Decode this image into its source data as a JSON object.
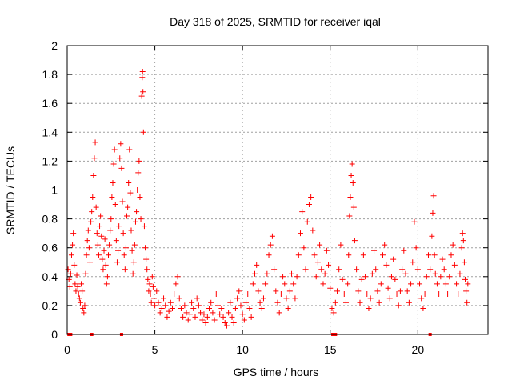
{
  "chart_data": {
    "type": "scatter",
    "title": "Day 318 of 2025, SRMTID for receiver iqal",
    "xlabel": "GPS time / hours",
    "ylabel": "SRMTID / TECUs",
    "xlim": [
      0,
      24
    ],
    "ylim": [
      0,
      2
    ],
    "xticks": [
      0,
      5,
      10,
      15,
      20
    ],
    "xtick_labels": [
      "0",
      "5",
      "10",
      "15",
      "20"
    ],
    "yticks": [
      0,
      0.2,
      0.4,
      0.6,
      0.8,
      1,
      1.2,
      1.4,
      1.6,
      1.8,
      2
    ],
    "ytick_labels": [
      "0",
      "0.2",
      "0.4",
      "0.6",
      "0.8",
      "1",
      "1.2",
      "1.4",
      "1.6",
      "1.8",
      "2"
    ],
    "grid": true,
    "marker": "+",
    "color": "#ff0000",
    "series": [
      {
        "name": "SRMTID",
        "points": [
          [
            0.05,
            0.45
          ],
          [
            0.1,
            0.38
          ],
          [
            0.15,
            0.33
          ],
          [
            0.2,
            0.42
          ],
          [
            0.25,
            0.55
          ],
          [
            0.3,
            0.62
          ],
          [
            0.35,
            0.7
          ],
          [
            0.4,
            0.48
          ],
          [
            0.45,
            0.35
          ],
          [
            0.5,
            0.3
          ],
          [
            0.55,
            0.41
          ],
          [
            0.6,
            0.33
          ],
          [
            0.65,
            0.28
          ],
          [
            0.7,
            0.25
          ],
          [
            0.75,
            0.22
          ],
          [
            0.8,
            0.35
          ],
          [
            0.85,
            0.3
          ],
          [
            0.9,
            0.18
          ],
          [
            0.95,
            0.15
          ],
          [
            1.0,
            0.2
          ],
          [
            1.05,
            0.42
          ],
          [
            1.1,
            0.55
          ],
          [
            1.15,
            0.65
          ],
          [
            1.2,
            0.72
          ],
          [
            1.25,
            0.6
          ],
          [
            1.3,
            0.5
          ],
          [
            1.35,
            0.78
          ],
          [
            1.4,
            0.85
          ],
          [
            1.45,
            0.95
          ],
          [
            1.5,
            1.1
          ],
          [
            1.55,
            1.22
          ],
          [
            1.6,
            1.33
          ],
          [
            1.65,
            0.88
          ],
          [
            1.7,
            0.7
          ],
          [
            1.75,
            0.62
          ],
          [
            1.8,
            0.55
          ],
          [
            1.85,
            0.75
          ],
          [
            1.9,
            0.82
          ],
          [
            1.95,
            0.68
          ],
          [
            2.0,
            0.52
          ],
          [
            2.05,
            0.45
          ],
          [
            2.1,
            0.58
          ],
          [
            2.15,
            0.66
          ],
          [
            2.2,
            0.48
          ],
          [
            2.25,
            0.35
          ],
          [
            2.3,
            0.4
          ],
          [
            2.35,
            0.55
          ],
          [
            2.4,
            0.62
          ],
          [
            2.45,
            0.72
          ],
          [
            2.5,
            0.8
          ],
          [
            2.55,
            0.95
          ],
          [
            2.6,
            1.05
          ],
          [
            2.65,
            1.18
          ],
          [
            2.7,
            1.28
          ],
          [
            2.75,
            0.9
          ],
          [
            2.8,
            0.65
          ],
          [
            2.85,
            0.5
          ],
          [
            2.9,
            0.58
          ],
          [
            2.95,
            0.75
          ],
          [
            3.0,
            1.22
          ],
          [
            3.05,
            1.32
          ],
          [
            3.1,
            1.15
          ],
          [
            3.15,
            0.92
          ],
          [
            3.2,
            0.7
          ],
          [
            3.25,
            0.55
          ],
          [
            3.3,
            0.45
          ],
          [
            3.35,
            0.6
          ],
          [
            3.4,
            0.82
          ],
          [
            3.45,
            0.88
          ],
          [
            3.5,
            1.05
          ],
          [
            3.55,
            1.28
          ],
          [
            3.6,
            0.98
          ],
          [
            3.65,
            0.72
          ],
          [
            3.7,
            0.58
          ],
          [
            3.75,
            0.42
          ],
          [
            3.8,
            0.5
          ],
          [
            3.85,
            0.62
          ],
          [
            3.9,
            0.78
          ],
          [
            3.95,
            0.85
          ],
          [
            4.0,
            1.0
          ],
          [
            4.05,
            1.12
          ],
          [
            4.1,
            1.2
          ],
          [
            4.15,
            0.95
          ],
          [
            4.2,
            0.8
          ],
          [
            4.25,
            1.65
          ],
          [
            4.28,
            1.78
          ],
          [
            4.3,
            1.82
          ],
          [
            4.32,
            1.68
          ],
          [
            4.35,
            1.4
          ],
          [
            4.4,
            0.75
          ],
          [
            4.45,
            0.6
          ],
          [
            4.5,
            0.52
          ],
          [
            4.55,
            0.45
          ],
          [
            4.6,
            0.38
          ],
          [
            4.65,
            0.3
          ],
          [
            4.7,
            0.35
          ],
          [
            4.75,
            0.28
          ],
          [
            4.8,
            0.22
          ],
          [
            4.85,
            0.4
          ],
          [
            4.9,
            0.33
          ],
          [
            4.95,
            0.25
          ],
          [
            5.0,
            0.2
          ],
          [
            5.1,
            0.3
          ],
          [
            5.2,
            0.22
          ],
          [
            5.3,
            0.15
          ],
          [
            5.4,
            0.18
          ],
          [
            5.5,
            0.25
          ],
          [
            5.6,
            0.2
          ],
          [
            5.7,
            0.12
          ],
          [
            5.8,
            0.16
          ],
          [
            5.9,
            0.22
          ],
          [
            6.0,
            0.18
          ],
          [
            6.1,
            0.28
          ],
          [
            6.2,
            0.35
          ],
          [
            6.3,
            0.4
          ],
          [
            6.4,
            0.25
          ],
          [
            6.5,
            0.18
          ],
          [
            6.6,
            0.12
          ],
          [
            6.7,
            0.2
          ],
          [
            6.8,
            0.15
          ],
          [
            6.9,
            0.1
          ],
          [
            7.0,
            0.14
          ],
          [
            7.1,
            0.22
          ],
          [
            7.2,
            0.18
          ],
          [
            7.3,
            0.12
          ],
          [
            7.4,
            0.25
          ],
          [
            7.5,
            0.2
          ],
          [
            7.6,
            0.15
          ],
          [
            7.7,
            0.1
          ],
          [
            7.8,
            0.14
          ],
          [
            7.9,
            0.08
          ],
          [
            8.0,
            0.12
          ],
          [
            8.1,
            0.18
          ],
          [
            8.2,
            0.22
          ],
          [
            8.3,
            0.15
          ],
          [
            8.4,
            0.1
          ],
          [
            8.5,
            0.28
          ],
          [
            8.6,
            0.2
          ],
          [
            8.7,
            0.14
          ],
          [
            8.8,
            0.18
          ],
          [
            8.9,
            0.12
          ],
          [
            9.0,
            0.08
          ],
          [
            9.1,
            0.06
          ],
          [
            9.2,
            0.15
          ],
          [
            9.3,
            0.22
          ],
          [
            9.4,
            0.12
          ],
          [
            9.5,
            0.08
          ],
          [
            9.6,
            0.18
          ],
          [
            9.7,
            0.25
          ],
          [
            9.8,
            0.3
          ],
          [
            9.9,
            0.2
          ],
          [
            10.0,
            0.14
          ],
          [
            10.1,
            0.1
          ],
          [
            10.2,
            0.22
          ],
          [
            10.3,
            0.28
          ],
          [
            10.4,
            0.18
          ],
          [
            10.5,
            0.12
          ],
          [
            10.6,
            0.35
          ],
          [
            10.7,
            0.42
          ],
          [
            10.8,
            0.48
          ],
          [
            10.9,
            0.3
          ],
          [
            11.0,
            0.22
          ],
          [
            11.1,
            0.18
          ],
          [
            11.2,
            0.25
          ],
          [
            11.3,
            0.35
          ],
          [
            11.4,
            0.42
          ],
          [
            11.5,
            0.55
          ],
          [
            11.6,
            0.62
          ],
          [
            11.7,
            0.68
          ],
          [
            11.8,
            0.45
          ],
          [
            11.9,
            0.3
          ],
          [
            12.0,
            0.22
          ],
          [
            12.1,
            0.15
          ],
          [
            12.2,
            0.28
          ],
          [
            12.3,
            0.4
          ],
          [
            12.4,
            0.35
          ],
          [
            12.5,
            0.25
          ],
          [
            12.6,
            0.18
          ],
          [
            12.7,
            0.3
          ],
          [
            12.8,
            0.42
          ],
          [
            12.9,
            0.35
          ],
          [
            13.0,
            0.25
          ],
          [
            13.1,
            0.4
          ],
          [
            13.2,
            0.55
          ],
          [
            13.3,
            0.7
          ],
          [
            13.4,
            0.85
          ],
          [
            13.5,
            0.6
          ],
          [
            13.6,
            0.45
          ],
          [
            13.7,
            0.78
          ],
          [
            13.8,
            0.9
          ],
          [
            13.9,
            0.95
          ],
          [
            14.0,
            0.72
          ],
          [
            14.1,
            0.55
          ],
          [
            14.2,
            0.4
          ],
          [
            14.3,
            0.5
          ],
          [
            14.4,
            0.62
          ],
          [
            14.5,
            0.45
          ],
          [
            14.6,
            0.35
          ],
          [
            14.7,
            0.42
          ],
          [
            14.8,
            0.58
          ],
          [
            14.9,
            0.48
          ],
          [
            15.0,
            0.32
          ],
          [
            15.1,
            0.18
          ],
          [
            15.2,
            0.15
          ],
          [
            15.3,
            0.22
          ],
          [
            15.4,
            0.3
          ],
          [
            15.5,
            0.45
          ],
          [
            15.6,
            0.62
          ],
          [
            15.7,
            0.38
          ],
          [
            15.8,
            0.28
          ],
          [
            15.9,
            0.22
          ],
          [
            16.0,
            0.35
          ],
          [
            16.05,
            0.55
          ],
          [
            16.1,
            0.82
          ],
          [
            16.15,
            0.95
          ],
          [
            16.2,
            1.1
          ],
          [
            16.25,
            1.18
          ],
          [
            16.3,
            1.05
          ],
          [
            16.35,
            0.88
          ],
          [
            16.4,
            0.65
          ],
          [
            16.5,
            0.45
          ],
          [
            16.6,
            0.3
          ],
          [
            16.7,
            0.22
          ],
          [
            16.8,
            0.38
          ],
          [
            16.9,
            0.55
          ],
          [
            17.0,
            0.4
          ],
          [
            17.1,
            0.28
          ],
          [
            17.2,
            0.18
          ],
          [
            17.3,
            0.25
          ],
          [
            17.4,
            0.42
          ],
          [
            17.5,
            0.58
          ],
          [
            17.6,
            0.45
          ],
          [
            17.7,
            0.3
          ],
          [
            17.8,
            0.22
          ],
          [
            17.9,
            0.35
          ],
          [
            18.0,
            0.55
          ],
          [
            18.1,
            0.62
          ],
          [
            18.2,
            0.48
          ],
          [
            18.3,
            0.32
          ],
          [
            18.4,
            0.25
          ],
          [
            18.5,
            0.4
          ],
          [
            18.6,
            0.52
          ],
          [
            18.7,
            0.38
          ],
          [
            18.8,
            0.28
          ],
          [
            18.9,
            0.2
          ],
          [
            19.0,
            0.3
          ],
          [
            19.1,
            0.45
          ],
          [
            19.2,
            0.58
          ],
          [
            19.3,
            0.42
          ],
          [
            19.4,
            0.3
          ],
          [
            19.5,
            0.22
          ],
          [
            19.6,
            0.35
          ],
          [
            19.7,
            0.5
          ],
          [
            19.8,
            0.78
          ],
          [
            19.9,
            0.6
          ],
          [
            20.0,
            0.45
          ],
          [
            20.1,
            0.35
          ],
          [
            20.2,
            0.25
          ],
          [
            20.3,
            0.18
          ],
          [
            20.4,
            0.28
          ],
          [
            20.5,
            0.4
          ],
          [
            20.6,
            0.55
          ],
          [
            20.7,
            0.45
          ],
          [
            20.8,
            0.68
          ],
          [
            20.85,
            0.84
          ],
          [
            20.9,
            0.96
          ],
          [
            20.95,
            0.55
          ],
          [
            21.0,
            0.42
          ],
          [
            21.1,
            0.35
          ],
          [
            21.2,
            0.28
          ],
          [
            21.3,
            0.4
          ],
          [
            21.4,
            0.52
          ],
          [
            21.5,
            0.45
          ],
          [
            21.6,
            0.35
          ],
          [
            21.7,
            0.28
          ],
          [
            21.8,
            0.4
          ],
          [
            21.9,
            0.55
          ],
          [
            22.0,
            0.62
          ],
          [
            22.1,
            0.48
          ],
          [
            22.2,
            0.35
          ],
          [
            22.3,
            0.28
          ],
          [
            22.4,
            0.42
          ],
          [
            22.5,
            0.6
          ],
          [
            22.55,
            0.7
          ],
          [
            22.6,
            0.65
          ],
          [
            22.65,
            0.5
          ],
          [
            22.7,
            0.38
          ],
          [
            22.75,
            0.3
          ],
          [
            22.8,
            0.22
          ],
          [
            22.85,
            0.35
          ]
        ]
      }
    ],
    "baseline_markers": [
      0.1,
      0.2,
      1.4,
      3.1,
      15.15,
      15.25,
      15.3,
      20.7
    ]
  }
}
